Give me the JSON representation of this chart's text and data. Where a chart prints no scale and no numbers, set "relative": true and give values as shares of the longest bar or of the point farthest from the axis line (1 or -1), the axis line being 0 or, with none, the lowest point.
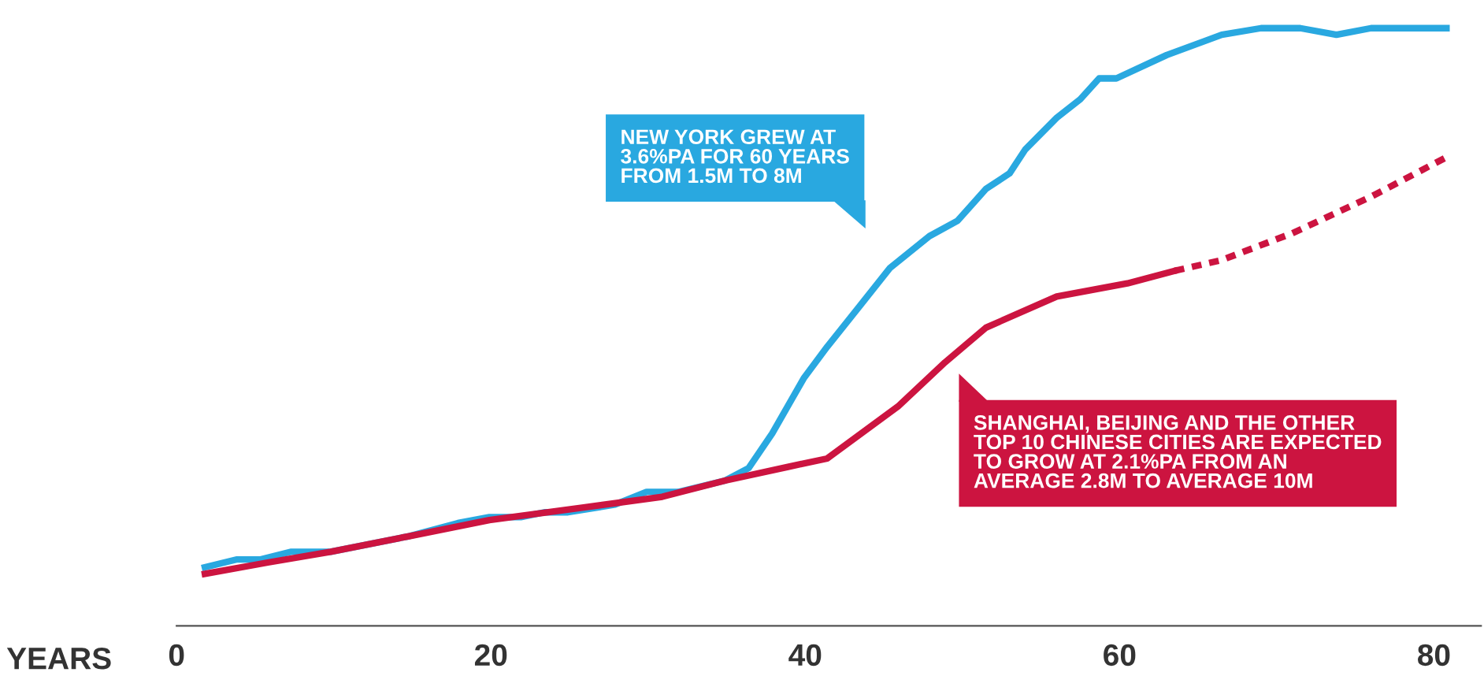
{
  "chart_data": {
    "type": "line",
    "relative": true,
    "xlabel": "YEARS",
    "xlim": [
      0,
      83
    ],
    "xticks": [
      0,
      20,
      40,
      60,
      80
    ],
    "grid": false,
    "legend": false,
    "series": [
      {
        "color": "#29a8e0",
        "line_style": "solid",
        "x": [
          1.8,
          3.8,
          5.3,
          7.3,
          9.8,
          14.8,
          17.9,
          19.9,
          21.9,
          23.4,
          24.9,
          27.9,
          29.9,
          31.9,
          34.9,
          36.4,
          37.9,
          39.9,
          41.4,
          43.4,
          45.4,
          47.9,
          49.7,
          51.5,
          53.0,
          54.0,
          56.0,
          57.5,
          58.7,
          59.8,
          63.0,
          66.5,
          69.0,
          71.5,
          73.8,
          76.0,
          80.8
        ],
        "values": [
          0.098,
          0.111,
          0.111,
          0.124,
          0.124,
          0.15,
          0.172,
          0.182,
          0.182,
          0.19,
          0.19,
          0.203,
          0.224,
          0.224,
          0.243,
          0.264,
          0.322,
          0.414,
          0.467,
          0.533,
          0.599,
          0.652,
          0.678,
          0.731,
          0.757,
          0.797,
          0.85,
          0.881,
          0.916,
          0.916,
          0.955,
          0.989,
          1,
          1,
          0.989,
          1,
          1
        ]
      },
      {
        "color": "#cc1440",
        "line_style": "solid",
        "x": [
          1.8,
          5.8,
          9.8,
          14.8,
          19.9,
          25.9,
          30.9,
          34.9,
          38.9,
          41.4,
          45.9,
          48.9,
          51.5,
          56.0,
          60.5,
          63.5
        ],
        "values": [
          0.087,
          0.106,
          0.124,
          0.15,
          0.177,
          0.198,
          0.216,
          0.243,
          0.266,
          0.28,
          0.367,
          0.441,
          0.499,
          0.551,
          0.573,
          0.594
        ]
      },
      {
        "color": "#cc1440",
        "line_style": "dotted",
        "x": [
          63.5,
          66.5,
          71.0,
          76.0,
          80.8
        ],
        "values": [
          0.594,
          0.612,
          0.657,
          0.718,
          0.784
        ]
      }
    ],
    "annotations": [
      "NEW YORK GREW AT\n3.6%PA FOR 60 YEARS\nFROM 1.5M TO 8M",
      "SHANGHAI, BEIJING AND THE OTHER\nTOP 10 CHINESE CITIES ARE EXPECTED\nTO GROW AT 2.1%PA FROM AN\nAVERAGE 2.8M TO AVERAGE 10M"
    ]
  }
}
